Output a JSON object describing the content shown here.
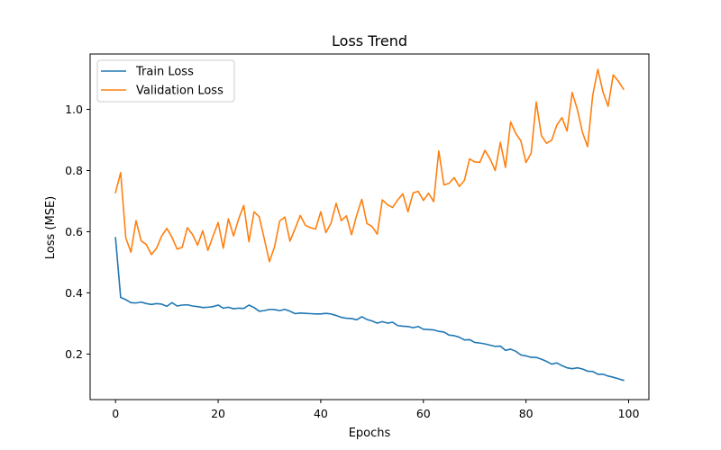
{
  "chart_data": {
    "type": "line",
    "title": "Loss Trend",
    "xlabel": "Epochs",
    "ylabel": "Loss (MSE)",
    "xlim": [
      -4.95,
      103.95
    ],
    "ylim": [
      0.051,
      1.181
    ],
    "xticks": [
      0,
      20,
      40,
      60,
      80,
      100
    ],
    "xtick_labels": [
      "0",
      "20",
      "40",
      "60",
      "80",
      "100"
    ],
    "yticks": [
      0.2,
      0.4,
      0.6,
      0.8,
      1.0
    ],
    "ytick_labels": [
      "0.2",
      "0.4",
      "0.6",
      "0.8",
      "1.0"
    ],
    "grid": false,
    "legend_position": "top-left",
    "x": [
      0,
      1,
      2,
      3,
      4,
      5,
      6,
      7,
      8,
      9,
      10,
      11,
      12,
      13,
      14,
      15,
      16,
      17,
      18,
      19,
      20,
      21,
      22,
      23,
      24,
      25,
      26,
      27,
      28,
      29,
      30,
      31,
      32,
      33,
      34,
      35,
      36,
      37,
      38,
      39,
      40,
      41,
      42,
      43,
      44,
      45,
      46,
      47,
      48,
      49,
      50,
      51,
      52,
      53,
      54,
      55,
      56,
      57,
      58,
      59,
      60,
      61,
      62,
      63,
      64,
      65,
      66,
      67,
      68,
      69,
      70,
      71,
      72,
      73,
      74,
      75,
      76,
      77,
      78,
      79,
      80,
      81,
      82,
      83,
      84,
      85,
      86,
      87,
      88,
      89,
      90,
      91,
      92,
      93,
      94,
      95,
      96,
      97,
      98,
      99
    ],
    "series": [
      {
        "name": "Train Loss",
        "color": "#1f77b4",
        "values": [
          0.58,
          0.385,
          0.378,
          0.368,
          0.367,
          0.37,
          0.365,
          0.362,
          0.365,
          0.363,
          0.356,
          0.368,
          0.357,
          0.36,
          0.361,
          0.357,
          0.355,
          0.352,
          0.353,
          0.355,
          0.36,
          0.35,
          0.353,
          0.348,
          0.35,
          0.349,
          0.36,
          0.352,
          0.34,
          0.342,
          0.346,
          0.345,
          0.342,
          0.346,
          0.34,
          0.332,
          0.334,
          0.333,
          0.332,
          0.331,
          0.331,
          0.333,
          0.331,
          0.326,
          0.32,
          0.317,
          0.316,
          0.312,
          0.322,
          0.313,
          0.308,
          0.301,
          0.306,
          0.301,
          0.304,
          0.293,
          0.291,
          0.29,
          0.286,
          0.29,
          0.281,
          0.28,
          0.279,
          0.274,
          0.272,
          0.262,
          0.26,
          0.255,
          0.246,
          0.247,
          0.238,
          0.236,
          0.233,
          0.229,
          0.225,
          0.226,
          0.212,
          0.216,
          0.209,
          0.197,
          0.194,
          0.189,
          0.189,
          0.183,
          0.176,
          0.167,
          0.171,
          0.162,
          0.155,
          0.152,
          0.155,
          0.151,
          0.144,
          0.143,
          0.134,
          0.134,
          0.128,
          0.124,
          0.119,
          0.114
        ]
      },
      {
        "name": "Validation Loss",
        "color": "#ff7f0e",
        "values": [
          0.728,
          0.793,
          0.58,
          0.533,
          0.636,
          0.57,
          0.558,
          0.525,
          0.546,
          0.586,
          0.611,
          0.582,
          0.543,
          0.549,
          0.613,
          0.591,
          0.556,
          0.603,
          0.539,
          0.585,
          0.63,
          0.546,
          0.642,
          0.586,
          0.642,
          0.686,
          0.567,
          0.665,
          0.649,
          0.576,
          0.502,
          0.551,
          0.635,
          0.648,
          0.569,
          0.61,
          0.653,
          0.621,
          0.613,
          0.609,
          0.665,
          0.597,
          0.628,
          0.693,
          0.636,
          0.652,
          0.59,
          0.654,
          0.706,
          0.627,
          0.617,
          0.592,
          0.704,
          0.688,
          0.679,
          0.704,
          0.724,
          0.665,
          0.727,
          0.732,
          0.702,
          0.726,
          0.698,
          0.864,
          0.753,
          0.758,
          0.777,
          0.748,
          0.768,
          0.838,
          0.828,
          0.827,
          0.866,
          0.838,
          0.8,
          0.892,
          0.81,
          0.959,
          0.921,
          0.897,
          0.826,
          0.857,
          1.024,
          0.914,
          0.889,
          0.899,
          0.948,
          0.973,
          0.929,
          1.055,
          1.0,
          0.925,
          0.878,
          1.046,
          1.131,
          1.057,
          1.01,
          1.113,
          1.092,
          1.066
        ]
      }
    ]
  }
}
